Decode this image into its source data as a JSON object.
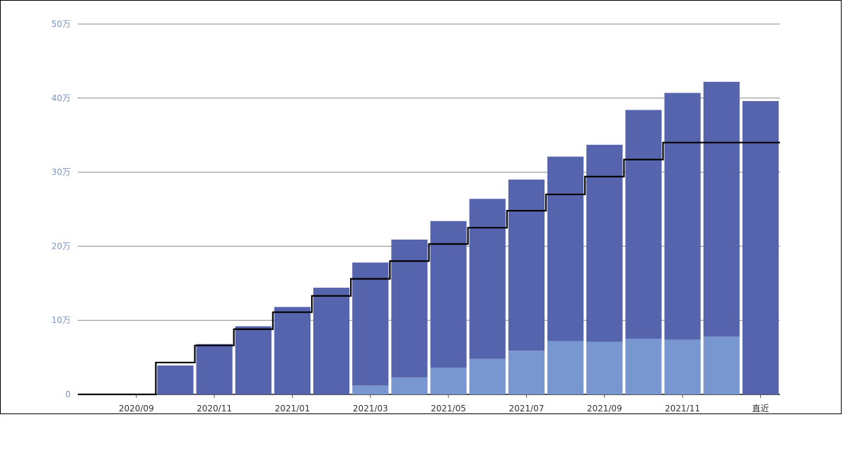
{
  "chart_data": {
    "type": "bar",
    "stacked": true,
    "categories": [
      "2020/08",
      "2020/09",
      "2020/10",
      "2020/11",
      "2020/12",
      "2021/01",
      "2021/02",
      "2021/03",
      "2021/04",
      "2021/05",
      "2021/06",
      "2021/07",
      "2021/08",
      "2021/09",
      "2021/10",
      "2021/11",
      "2021/12",
      "直近"
    ],
    "series": [
      {
        "values": [
          0,
          0,
          0,
          0,
          0,
          0,
          0,
          1.2,
          2.3,
          3.6,
          4.8,
          5.9,
          7.2,
          7.1,
          7.5,
          7.4,
          7.8,
          0
        ],
        "color": "#7896d0"
      },
      {
        "values": [
          0,
          0,
          3.9,
          6.8,
          9.2,
          11.8,
          14.4,
          16.6,
          18.6,
          19.8,
          21.6,
          23.1,
          24.9,
          26.6,
          30.9,
          33.3,
          34.4,
          39.6
        ],
        "color": "#5663ad"
      },
      {
        "type": "step-line",
        "values": [
          0,
          0,
          4.3,
          6.6,
          8.8,
          11.1,
          13.3,
          15.6,
          18.0,
          20.3,
          22.5,
          24.8,
          27.0,
          29.4,
          31.7,
          34.0,
          34.0,
          34.0
        ],
        "color": "#000000"
      }
    ],
    "y_tick_labels": [
      "0",
      "10万",
      "20万",
      "30万",
      "40万",
      "50万"
    ],
    "x_tick_labels": [
      "2020/09",
      "2020/11",
      "2021/01",
      "2021/03",
      "2021/05",
      "2021/07",
      "2021/09",
      "2021/11",
      "直近"
    ],
    "ylim": [
      0,
      50
    ],
    "grid": true
  }
}
